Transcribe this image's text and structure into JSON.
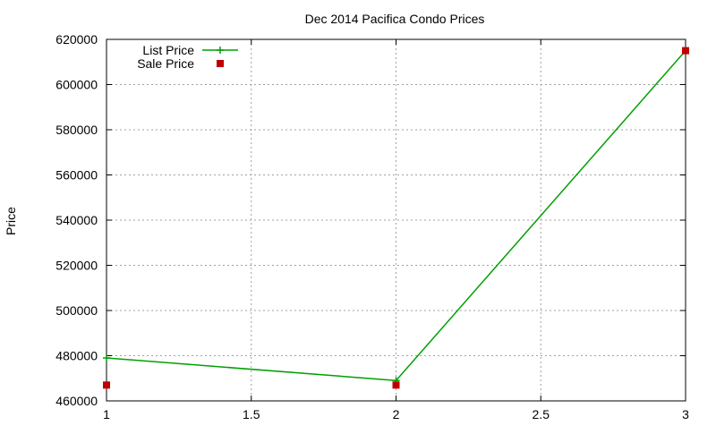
{
  "chart_data": {
    "type": "line",
    "title": "Dec 2014 Pacifica Condo Prices",
    "xlabel": "",
    "ylabel": "Price",
    "xlim": [
      1,
      3
    ],
    "ylim": [
      460000,
      620000
    ],
    "xticks": [
      1,
      1.5,
      2,
      2.5,
      3
    ],
    "xtick_labels": [
      "1",
      "1.5",
      "2",
      "2.5",
      "3"
    ],
    "yticks": [
      460000,
      480000,
      500000,
      520000,
      540000,
      560000,
      580000,
      600000,
      620000
    ],
    "ytick_labels": [
      "460000",
      "480000",
      "500000",
      "520000",
      "540000",
      "560000",
      "580000",
      "600000",
      "620000"
    ],
    "grid": true,
    "legend_position": "top-left",
    "series": [
      {
        "name": "List Price",
        "kind": "line-with-markers",
        "marker": "plus",
        "color": "#00a000",
        "x": [
          1,
          2,
          3
        ],
        "y": [
          479000,
          469000,
          615000
        ]
      },
      {
        "name": "Sale Price",
        "kind": "points",
        "marker": "square",
        "color": "#c00000",
        "x": [
          1,
          2,
          3
        ],
        "y": [
          467000,
          467000,
          615000
        ]
      }
    ]
  }
}
